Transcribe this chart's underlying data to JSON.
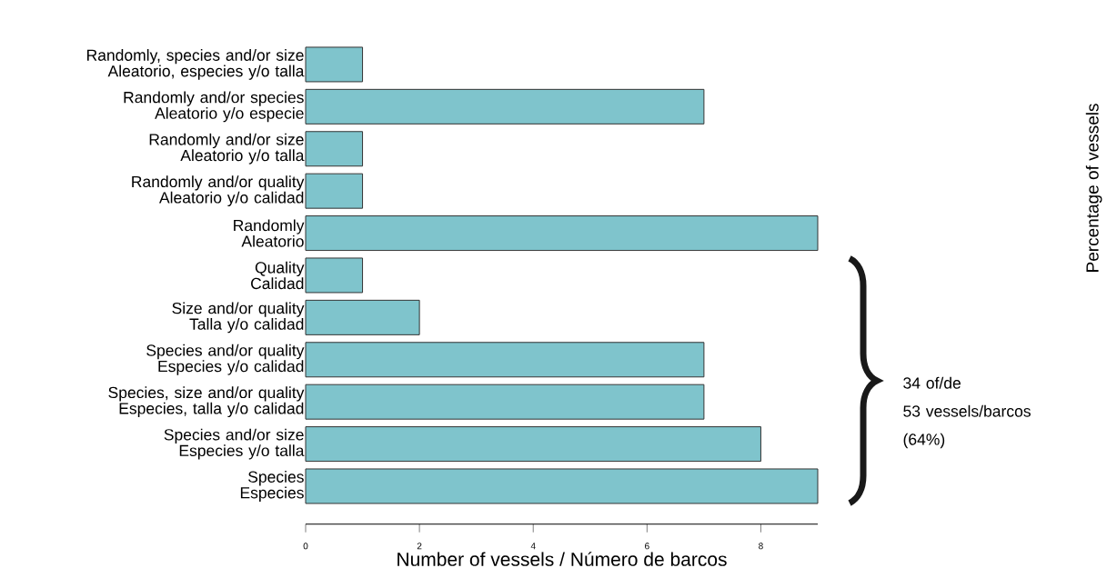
{
  "chart_data": {
    "type": "bar",
    "orientation": "horizontal",
    "xlabel": "Number of vessels / Número de barcos",
    "categories": [
      "Randomly, species and/or size\nAleatorio, especies y/o talla",
      "Randomly and/or species\nAleatorio y/o especie",
      "Randomly and/or size\nAleatorio y/o talla",
      "Randomly and/or quality\nAleatorio y/o calidad",
      "Randomly\nAleatorio",
      "Quality\nCalidad",
      "Size and/or quality\nTalla y/o calidad",
      "Species and/or quality\nEspecies y/o calidad",
      "Species, size and/or quality\nEspecies, talla y/o calidad",
      "Species and/or size\nEspecies y/o talla",
      "Species\nEspecies"
    ],
    "values": [
      1,
      7,
      1,
      1,
      9,
      1,
      2,
      7,
      7,
      8,
      9
    ],
    "color": "#7fc4cc",
    "xlim": [
      0,
      9
    ],
    "xticks": [
      0,
      2,
      4,
      6,
      8
    ],
    "grid": false,
    "annotations": [
      "34 of/de\n53 vessels/barcos\n(64%)",
      "Percentage of vessels"
    ]
  }
}
